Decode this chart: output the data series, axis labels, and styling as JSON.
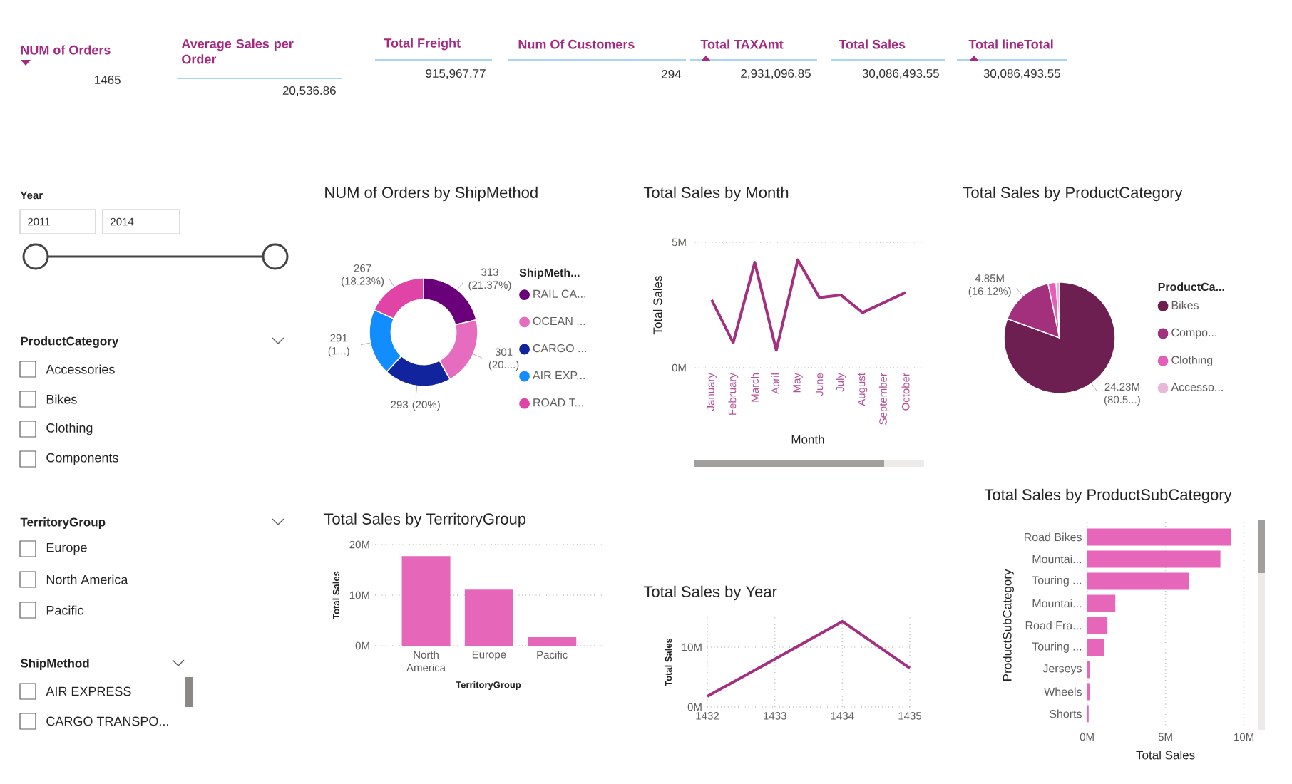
{
  "chart_data": [
    {
      "type": "other",
      "title": "NUM of Orders",
      "annotations": [
        "1465"
      ]
    },
    {
      "type": "other",
      "title": "Average Sales per Order",
      "annotations": [
        "20,536.86"
      ]
    },
    {
      "type": "other",
      "title": "Total Freight",
      "annotations": [
        "915,967.77"
      ]
    },
    {
      "type": "other",
      "title": "Num Of Customers",
      "annotations": [
        "294"
      ]
    },
    {
      "type": "other",
      "title": "Total TAXAmt",
      "annotations": [
        "2,931,096.85"
      ]
    },
    {
      "type": "other",
      "title": "Total Sales",
      "annotations": [
        "30,086,493.55"
      ]
    },
    {
      "type": "other",
      "title": "Total lineTotal",
      "annotations": [
        "30,086,493.55"
      ]
    },
    {
      "type": "other",
      "title": "Year",
      "annotations": [
        "2011",
        "2014"
      ]
    },
    {
      "type": "other",
      "title": "ProductCategory",
      "annotations": [
        "Accessories",
        "Bikes",
        "Clothing",
        "Components"
      ]
    },
    {
      "type": "other",
      "title": "TerritoryGroup",
      "annotations": [
        "Europe",
        "North America",
        "Pacific"
      ]
    },
    {
      "type": "other",
      "title": "ShipMethod",
      "annotations": [
        "AIR EXPRESS",
        "CARGO TRANSPO..."
      ]
    },
    {
      "type": "donut",
      "title": "NUM of Orders by ShipMethod",
      "legend_title": "ShipMeth...",
      "categories": [
        "RAIL CA...",
        "OCEAN ...",
        "CARGO ...",
        "AIR EXP...",
        "ROAD T..."
      ],
      "values": [
        313,
        301,
        293,
        291,
        267
      ],
      "colors": [
        "#6b007b",
        "#e66cbf",
        "#12239e",
        "#118dff",
        "#e044a7"
      ],
      "value_labels": [
        "313 (21.37%)",
        "301 (20....)",
        "293 (20%)",
        "291 (1...)",
        "267 (18.23%)"
      ],
      "legend": "right"
    },
    {
      "type": "line",
      "title": "Total Sales by Month",
      "xlabel": "Month",
      "ylabel": "Total Sales",
      "categories": [
        "January",
        "February",
        "March",
        "April",
        "May",
        "June",
        "July",
        "August",
        "September",
        "October"
      ],
      "series": [
        {
          "color": "#a3307f",
          "values": [
            2700000,
            1000000,
            4200000,
            700000,
            4300000,
            2800000,
            2900000,
            2200000,
            2600000,
            3000000
          ]
        }
      ],
      "ylim": [
        0,
        5000000
      ],
      "yticks": [
        {
          "value": 0,
          "label": "0M"
        },
        {
          "value": 5000000,
          "label": "5M"
        }
      ],
      "grid": "y"
    },
    {
      "type": "pie",
      "title": "Total Sales by ProductCategory",
      "legend_title": "ProductCa...",
      "categories": [
        "Bikes",
        "Compo...",
        "Clothing",
        "Accesso..."
      ],
      "values": [
        24230000,
        4850000,
        700000,
        300000
      ],
      "colors": [
        "#6d1f52",
        "#a3307d",
        "#e35fb8",
        "#e9b8d8"
      ],
      "value_labels": [
        "24.23M (80.5...)",
        "4.85M (16.12%)",
        null,
        null
      ],
      "legend": "right"
    },
    {
      "type": "bar",
      "title": "Total Sales by TerritoryGroup",
      "xlabel": "TerritoryGroup",
      "ylabel": "Total Sales",
      "categories": [
        "North America",
        "Europe",
        "Pacific"
      ],
      "values": [
        17700000,
        11100000,
        1700000
      ],
      "color": "#e667ba",
      "ylim": [
        0,
        20000000
      ],
      "yticks": [
        {
          "value": 0,
          "label": "0M"
        },
        {
          "value": 10000000,
          "label": "10M"
        },
        {
          "value": 20000000,
          "label": "20M"
        }
      ],
      "grid": "y"
    },
    {
      "type": "line",
      "title": "Total Sales by Year",
      "ylabel": "Total Sales",
      "x": [
        1432,
        1433,
        1434,
        1435
      ],
      "series": [
        {
          "color": "#a3307f",
          "values": [
            1800000,
            8000000,
            14300000,
            6500000
          ]
        }
      ],
      "xlim": [
        1432,
        1435
      ],
      "xticks": [
        1432,
        1433,
        1434,
        1435
      ],
      "ylim": [
        0,
        15000000
      ],
      "yticks": [
        {
          "value": 0,
          "label": "0M"
        },
        {
          "value": 10000000,
          "label": "10M"
        }
      ],
      "grid": true
    },
    {
      "type": "bar",
      "orientation": "horizontal",
      "title": "Total Sales by ProductSubCategory",
      "xlabel": "Total Sales",
      "ylabel": "ProductSubCategory",
      "categories": [
        "Road Bikes",
        "Mountai...",
        "Touring ...",
        "Mountai...",
        "Road Fra...",
        "Touring ...",
        "Jerseys",
        "Wheels",
        "Shorts"
      ],
      "values": [
        9200000,
        8500000,
        6500000,
        1800000,
        1300000,
        1100000,
        200000,
        200000,
        100000
      ],
      "color": "#e667ba",
      "xlim": [
        0,
        10000000
      ],
      "xticks": [
        {
          "value": 0,
          "label": "0M"
        },
        {
          "value": 5000000,
          "label": "5M"
        },
        {
          "value": 10000000,
          "label": "10M"
        }
      ],
      "grid": "x"
    }
  ]
}
